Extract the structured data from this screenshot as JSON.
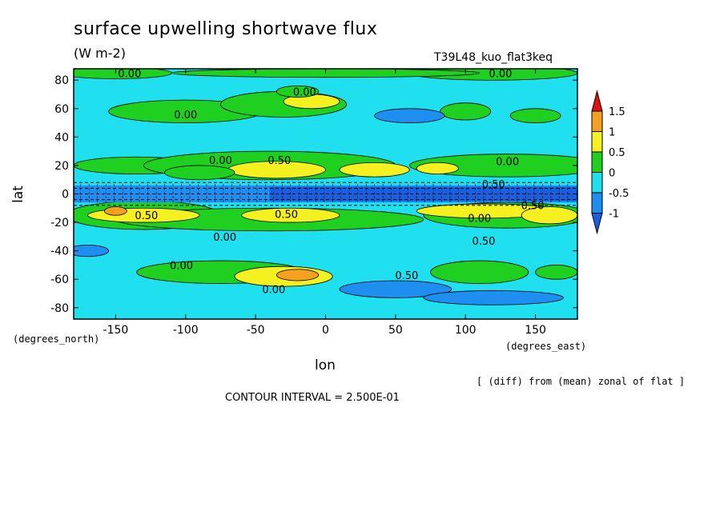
{
  "title": "surface upwelling shortwave flux",
  "units": "(W m-2)",
  "run_id": "T39L48_kuo_flat3keq",
  "contour_interval_text": "CONTOUR INTERVAL = 2.500E-01",
  "diff_note": "[ (diff) from (mean) zonal of flat ]",
  "chart_data": {
    "type": "heatmap",
    "title": "surface upwelling shortwave flux",
    "units": "(W m-2)",
    "xlabel": "lon",
    "ylabel": "lat",
    "x_unit_label": "(degrees_east)",
    "y_unit_label": "(degrees_north)",
    "xlim": [
      -180,
      180
    ],
    "ylim": [
      -88,
      88
    ],
    "x_ticks": [
      -150,
      -100,
      -50,
      0,
      50,
      100,
      150
    ],
    "y_ticks": [
      80,
      60,
      40,
      20,
      0,
      -20,
      -40,
      -60,
      -80
    ],
    "colorbar": {
      "labels": [
        "1.5",
        "1",
        "0.5",
        "0",
        "-0.5",
        "-1"
      ],
      "colors": [
        "#e01010",
        "#f5a020",
        "#f5f020",
        "#20d020",
        "#20e0f0",
        "#1e8ef0",
        "#1860e0"
      ]
    },
    "contour_labels": [
      {
        "text": "0.00",
        "lon": -140,
        "lat": 85
      },
      {
        "text": "0.00",
        "lon": 125,
        "lat": 85
      },
      {
        "text": "0.00",
        "lon": -15,
        "lat": 72
      },
      {
        "text": "0.00",
        "lon": -100,
        "lat": 56
      },
      {
        "text": "0.00",
        "lon": -75,
        "lat": 24
      },
      {
        "text": "0.50",
        "lon": -33,
        "lat": 24
      },
      {
        "text": "0.00",
        "lon": 130,
        "lat": 23
      },
      {
        "text": "0.50",
        "lon": -128,
        "lat": -15
      },
      {
        "text": "0.50",
        "lon": -28,
        "lat": -14
      },
      {
        "text": "0.00",
        "lon": 110,
        "lat": -17
      },
      {
        "text": "0.00",
        "lon": -72,
        "lat": -30
      },
      {
        "text": "0.50",
        "lon": 113,
        "lat": -33
      },
      {
        "text": "0.00",
        "lon": -103,
        "lat": -50
      },
      {
        "text": "0.50",
        "lon": 58,
        "lat": -57
      },
      {
        "text": "0.00",
        "lon": -37,
        "lat": -67
      },
      {
        "text": "0.50",
        "lon": 120,
        "lat": 7
      },
      {
        "text": "0.50",
        "lon": 148,
        "lat": -8
      }
    ]
  }
}
